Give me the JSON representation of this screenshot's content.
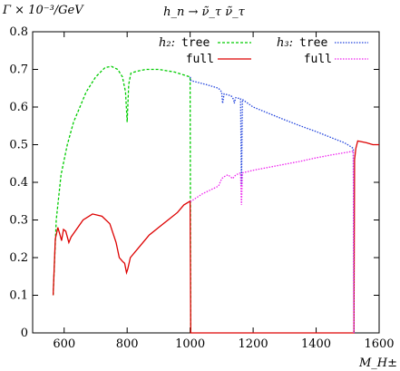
{
  "chart_data": {
    "type": "line",
    "title": "h_n → ν̃_τ ν̃_τ",
    "ylabel": "Γ × 10⁻³/GeV",
    "xlabel": "M_H±",
    "xlim": [
      500,
      1600
    ],
    "ylim": [
      0,
      0.8
    ],
    "xticks": [
      600,
      800,
      1000,
      1200,
      1400,
      1600
    ],
    "yticks": [
      0,
      0.1,
      0.2,
      0.3,
      0.4,
      0.5,
      0.6,
      0.7,
      0.8
    ],
    "legend": {
      "placement": "top-right",
      "groups": [
        "h₂:",
        "h₃:"
      ]
    },
    "series": [
      {
        "name": "tree",
        "group": "h₂",
        "color": "#00cc00",
        "dash": "dashed",
        "points": [
          [
            565,
            0.1
          ],
          [
            575,
            0.3
          ],
          [
            590,
            0.42
          ],
          [
            610,
            0.5
          ],
          [
            630,
            0.56
          ],
          [
            650,
            0.6
          ],
          [
            670,
            0.64
          ],
          [
            700,
            0.68
          ],
          [
            730,
            0.705
          ],
          [
            750,
            0.708
          ],
          [
            770,
            0.7
          ],
          [
            785,
            0.68
          ],
          [
            795,
            0.64
          ],
          [
            800,
            0.56
          ],
          [
            805,
            0.66
          ],
          [
            812,
            0.69
          ],
          [
            830,
            0.695
          ],
          [
            860,
            0.7
          ],
          [
            900,
            0.7
          ],
          [
            950,
            0.693
          ],
          [
            1000,
            0.68
          ],
          [
            1002,
            0.0
          ]
        ]
      },
      {
        "name": "full",
        "group": "h₂",
        "color": "#dd0000",
        "dash": "solid",
        "points": [
          [
            565,
            0.1
          ],
          [
            572,
            0.25
          ],
          [
            580,
            0.28
          ],
          [
            587,
            0.26
          ],
          [
            592,
            0.245
          ],
          [
            598,
            0.275
          ],
          [
            605,
            0.27
          ],
          [
            615,
            0.24
          ],
          [
            622,
            0.255
          ],
          [
            635,
            0.27
          ],
          [
            660,
            0.3
          ],
          [
            690,
            0.316
          ],
          [
            720,
            0.31
          ],
          [
            745,
            0.29
          ],
          [
            765,
            0.24
          ],
          [
            775,
            0.2
          ],
          [
            785,
            0.19
          ],
          [
            792,
            0.185
          ],
          [
            798,
            0.16
          ],
          [
            802,
            0.17
          ],
          [
            810,
            0.2
          ],
          [
            840,
            0.23
          ],
          [
            870,
            0.26
          ],
          [
            900,
            0.28
          ],
          [
            930,
            0.3
          ],
          [
            960,
            0.32
          ],
          [
            980,
            0.34
          ],
          [
            1000,
            0.35
          ],
          [
            1002,
            0.0
          ],
          [
            1520,
            0.0
          ],
          [
            1522,
            0.46
          ],
          [
            1526,
            0.49
          ],
          [
            1532,
            0.51
          ],
          [
            1560,
            0.505
          ],
          [
            1580,
            0.5
          ],
          [
            1600,
            0.5
          ]
        ]
      },
      {
        "name": "tree",
        "group": "h₃",
        "color": "#2244dd",
        "dash": "dotted",
        "points": [
          [
            1000,
            0.68
          ],
          [
            1003,
            0.67
          ],
          [
            1050,
            0.66
          ],
          [
            1090,
            0.65
          ],
          [
            1100,
            0.64
          ],
          [
            1103,
            0.61
          ],
          [
            1108,
            0.635
          ],
          [
            1130,
            0.63
          ],
          [
            1138,
            0.62
          ],
          [
            1140,
            0.61
          ],
          [
            1145,
            0.625
          ],
          [
            1160,
            0.622
          ],
          [
            1163,
            0.39
          ],
          [
            1166,
            0.62
          ],
          [
            1200,
            0.6
          ],
          [
            1250,
            0.583
          ],
          [
            1300,
            0.566
          ],
          [
            1350,
            0.55
          ],
          [
            1400,
            0.535
          ],
          [
            1450,
            0.518
          ],
          [
            1490,
            0.505
          ],
          [
            1510,
            0.495
          ],
          [
            1518,
            0.49
          ],
          [
            1520,
            0.0
          ]
        ]
      },
      {
        "name": "full",
        "group": "h₃",
        "color": "#ee22ee",
        "dash": "dotted",
        "points": [
          [
            1000,
            0.35
          ],
          [
            1003,
            0.35
          ],
          [
            1040,
            0.37
          ],
          [
            1090,
            0.39
          ],
          [
            1100,
            0.41
          ],
          [
            1108,
            0.415
          ],
          [
            1120,
            0.42
          ],
          [
            1135,
            0.41
          ],
          [
            1145,
            0.42
          ],
          [
            1160,
            0.425
          ],
          [
            1163,
            0.34
          ],
          [
            1166,
            0.425
          ],
          [
            1200,
            0.432
          ],
          [
            1250,
            0.44
          ],
          [
            1300,
            0.448
          ],
          [
            1350,
            0.456
          ],
          [
            1400,
            0.465
          ],
          [
            1450,
            0.473
          ],
          [
            1500,
            0.48
          ],
          [
            1518,
            0.483
          ],
          [
            1520,
            0.0
          ]
        ]
      }
    ]
  }
}
